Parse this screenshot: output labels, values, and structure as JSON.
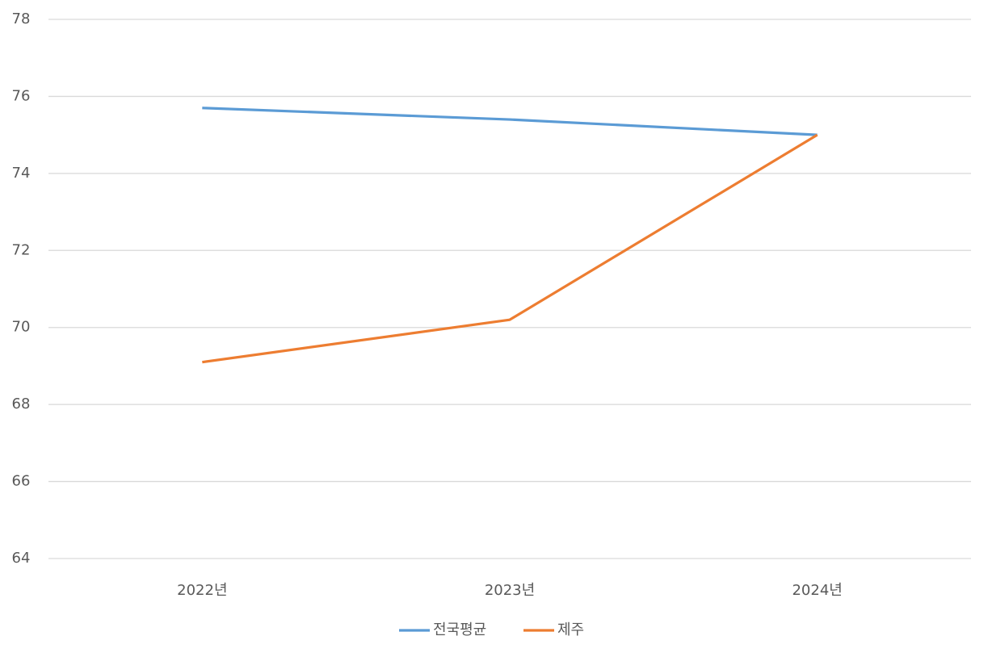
{
  "chart_data": {
    "type": "line",
    "categories": [
      "2022년",
      "2023년",
      "2024년"
    ],
    "series": [
      {
        "name": "전국평균",
        "color": "#5b9bd5",
        "values": [
          75.7,
          75.4,
          75.0
        ]
      },
      {
        "name": "제주",
        "color": "#ed7d31",
        "values": [
          69.1,
          70.2,
          75.0
        ]
      }
    ],
    "ylim": [
      64,
      78
    ],
    "yticks": [
      64,
      66,
      68,
      70,
      72,
      74,
      76,
      78
    ],
    "grid": true,
    "legend": "bottom"
  }
}
